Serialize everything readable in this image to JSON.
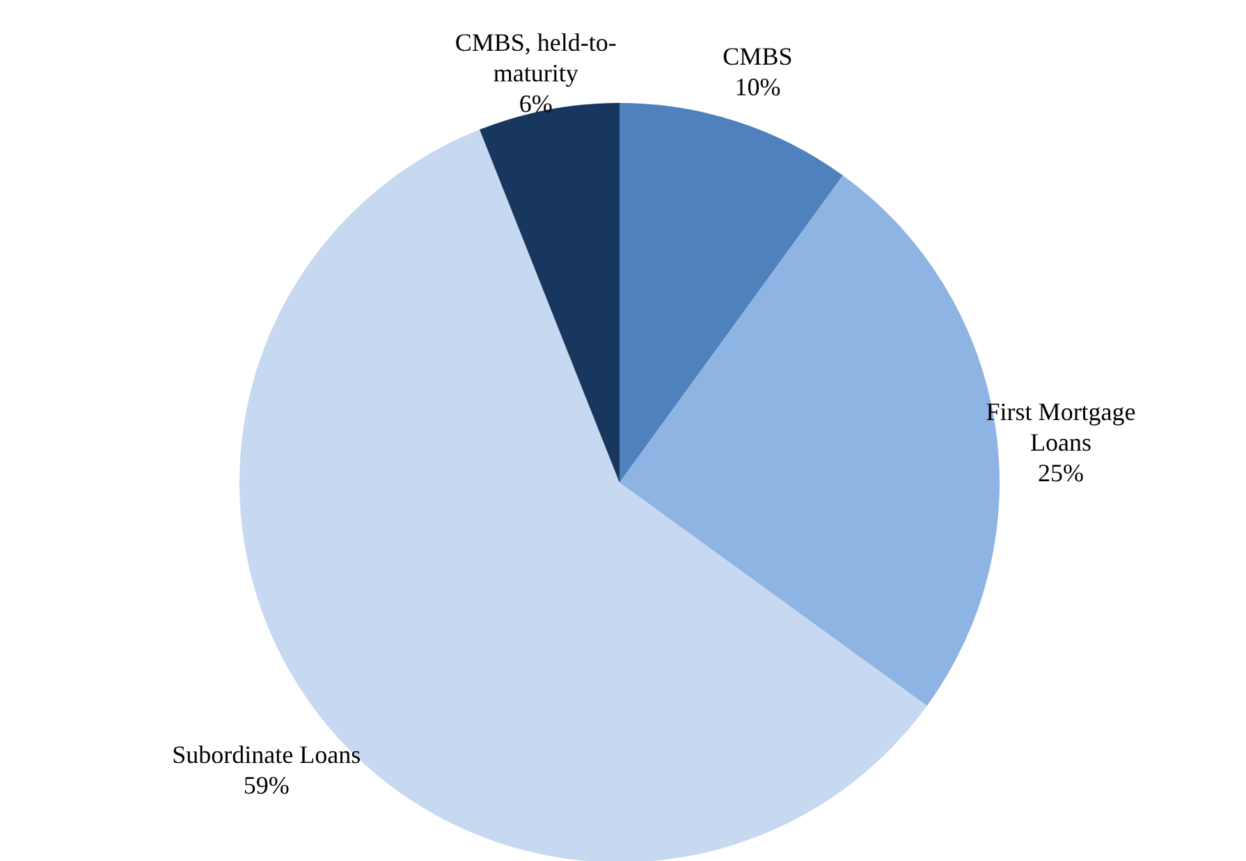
{
  "chart_data": {
    "type": "pie",
    "categories": [
      "CMBS",
      "First Mortgage Loans",
      "Subordinate Loans",
      "CMBS, held-to-maturity"
    ],
    "values": [
      10,
      25,
      59,
      6
    ],
    "colors": [
      "#4f81bd",
      "#8eb4e3",
      "#c6d9f1",
      "#17375e"
    ],
    "value_labels": [
      "10%",
      "25%",
      "59%",
      "6%"
    ]
  }
}
